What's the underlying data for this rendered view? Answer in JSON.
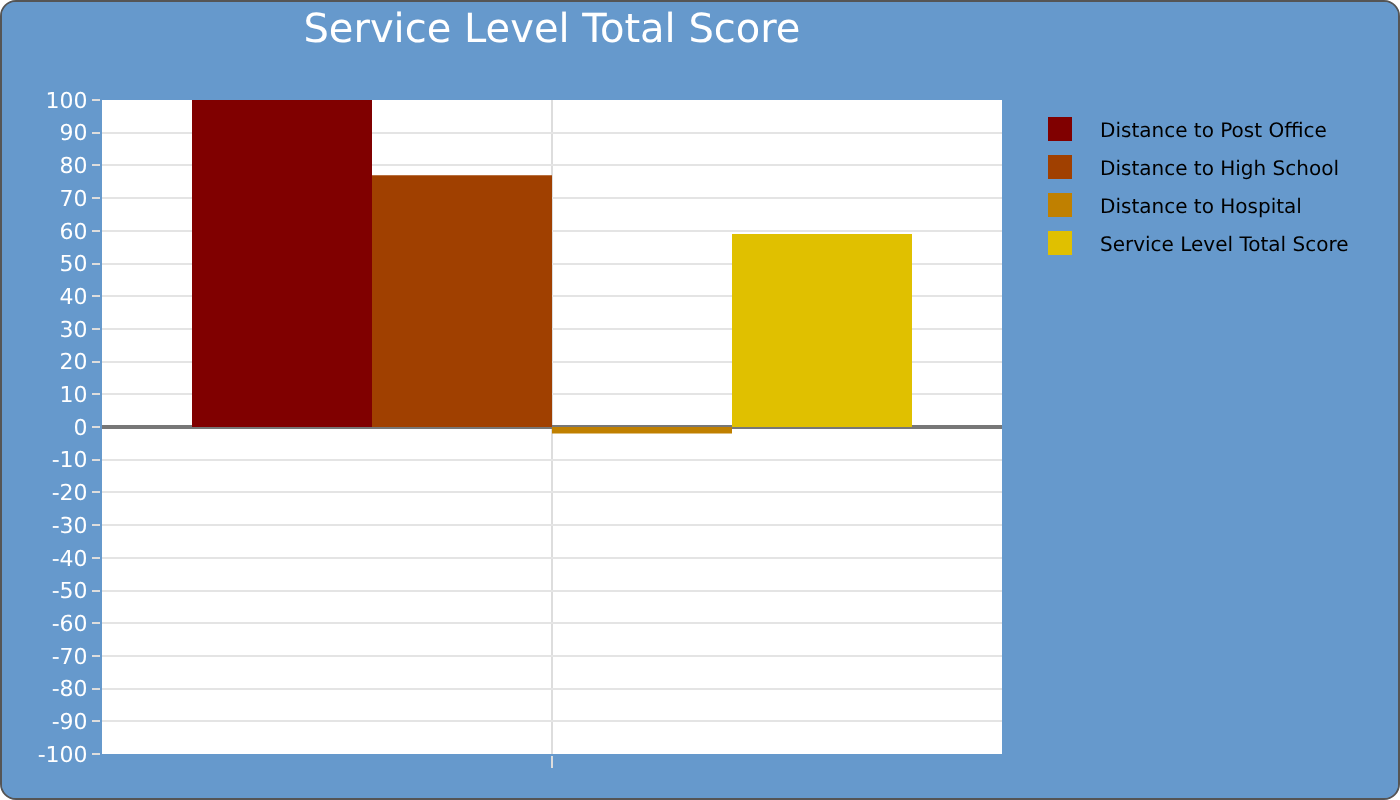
{
  "chart_data": {
    "type": "bar",
    "title": "Service Level Total Score",
    "categories": [
      null
    ],
    "series": [
      {
        "name": "Distance to Post Office",
        "color": "#800000",
        "values": [
          100
        ]
      },
      {
        "name": "Distance to High School",
        "color": "#a04000",
        "values": [
          77
        ]
      },
      {
        "name": "Distance to Hospital",
        "color": "#c08000",
        "values": [
          -2
        ]
      },
      {
        "name": "Service Level Total Score",
        "color": "#e0c000",
        "values": [
          59
        ]
      }
    ],
    "ylim": [
      -100,
      100
    ],
    "yticks": [
      -100,
      -90,
      -80,
      -70,
      -60,
      -50,
      -40,
      -30,
      -20,
      -10,
      0,
      10,
      20,
      30,
      40,
      50,
      60,
      70,
      80,
      90,
      100
    ],
    "grid": true,
    "legend": "top right"
  }
}
